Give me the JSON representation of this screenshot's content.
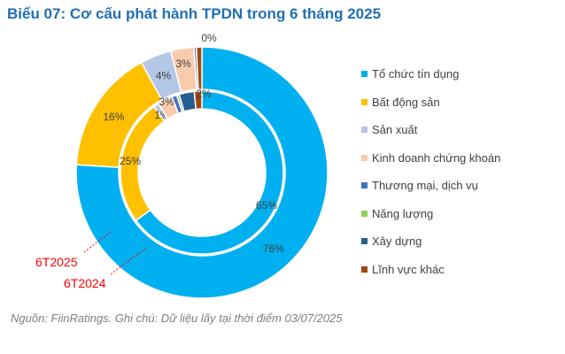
{
  "title": "Biểu 07: Cơ cấu phát hành TPDN trong 6 tháng 2025",
  "note": "Nguồn: FiinRatings. Ghi chú: Dữ liệu lấy tại thời điểm 03/07/2025",
  "chart_data": {
    "type": "pie",
    "subtype": "double-donut",
    "categories": [
      "Tổ chức tín dụng",
      "Bất động sản",
      "Sản xuất",
      "Kinh doanh chứng khoán",
      "Thương mại, dịch vụ",
      "Năng lượng",
      "Xây dựng",
      "Lĩnh vực khác"
    ],
    "colors": [
      "#00b0f0",
      "#ffc000",
      "#b4c7e7",
      "#f8cbad",
      "#4472c4",
      "#92d050",
      "#255e91",
      "#9e480e"
    ],
    "series": [
      {
        "name": "6T2024",
        "ring": "outer",
        "values": [
          76,
          16,
          4,
          3,
          0.3,
          0,
          0,
          0.7
        ],
        "labels": [
          "76%",
          "16%",
          "4%",
          "3%",
          "0%",
          "",
          "",
          ""
        ]
      },
      {
        "name": "6T2025",
        "ring": "inner",
        "values": [
          65,
          25,
          1,
          3,
          1,
          0.5,
          3,
          1.5
        ],
        "labels": [
          "65%",
          "25%",
          "1%",
          "3%",
          "",
          "",
          "",
          "2%"
        ]
      }
    ],
    "legend": "right"
  }
}
